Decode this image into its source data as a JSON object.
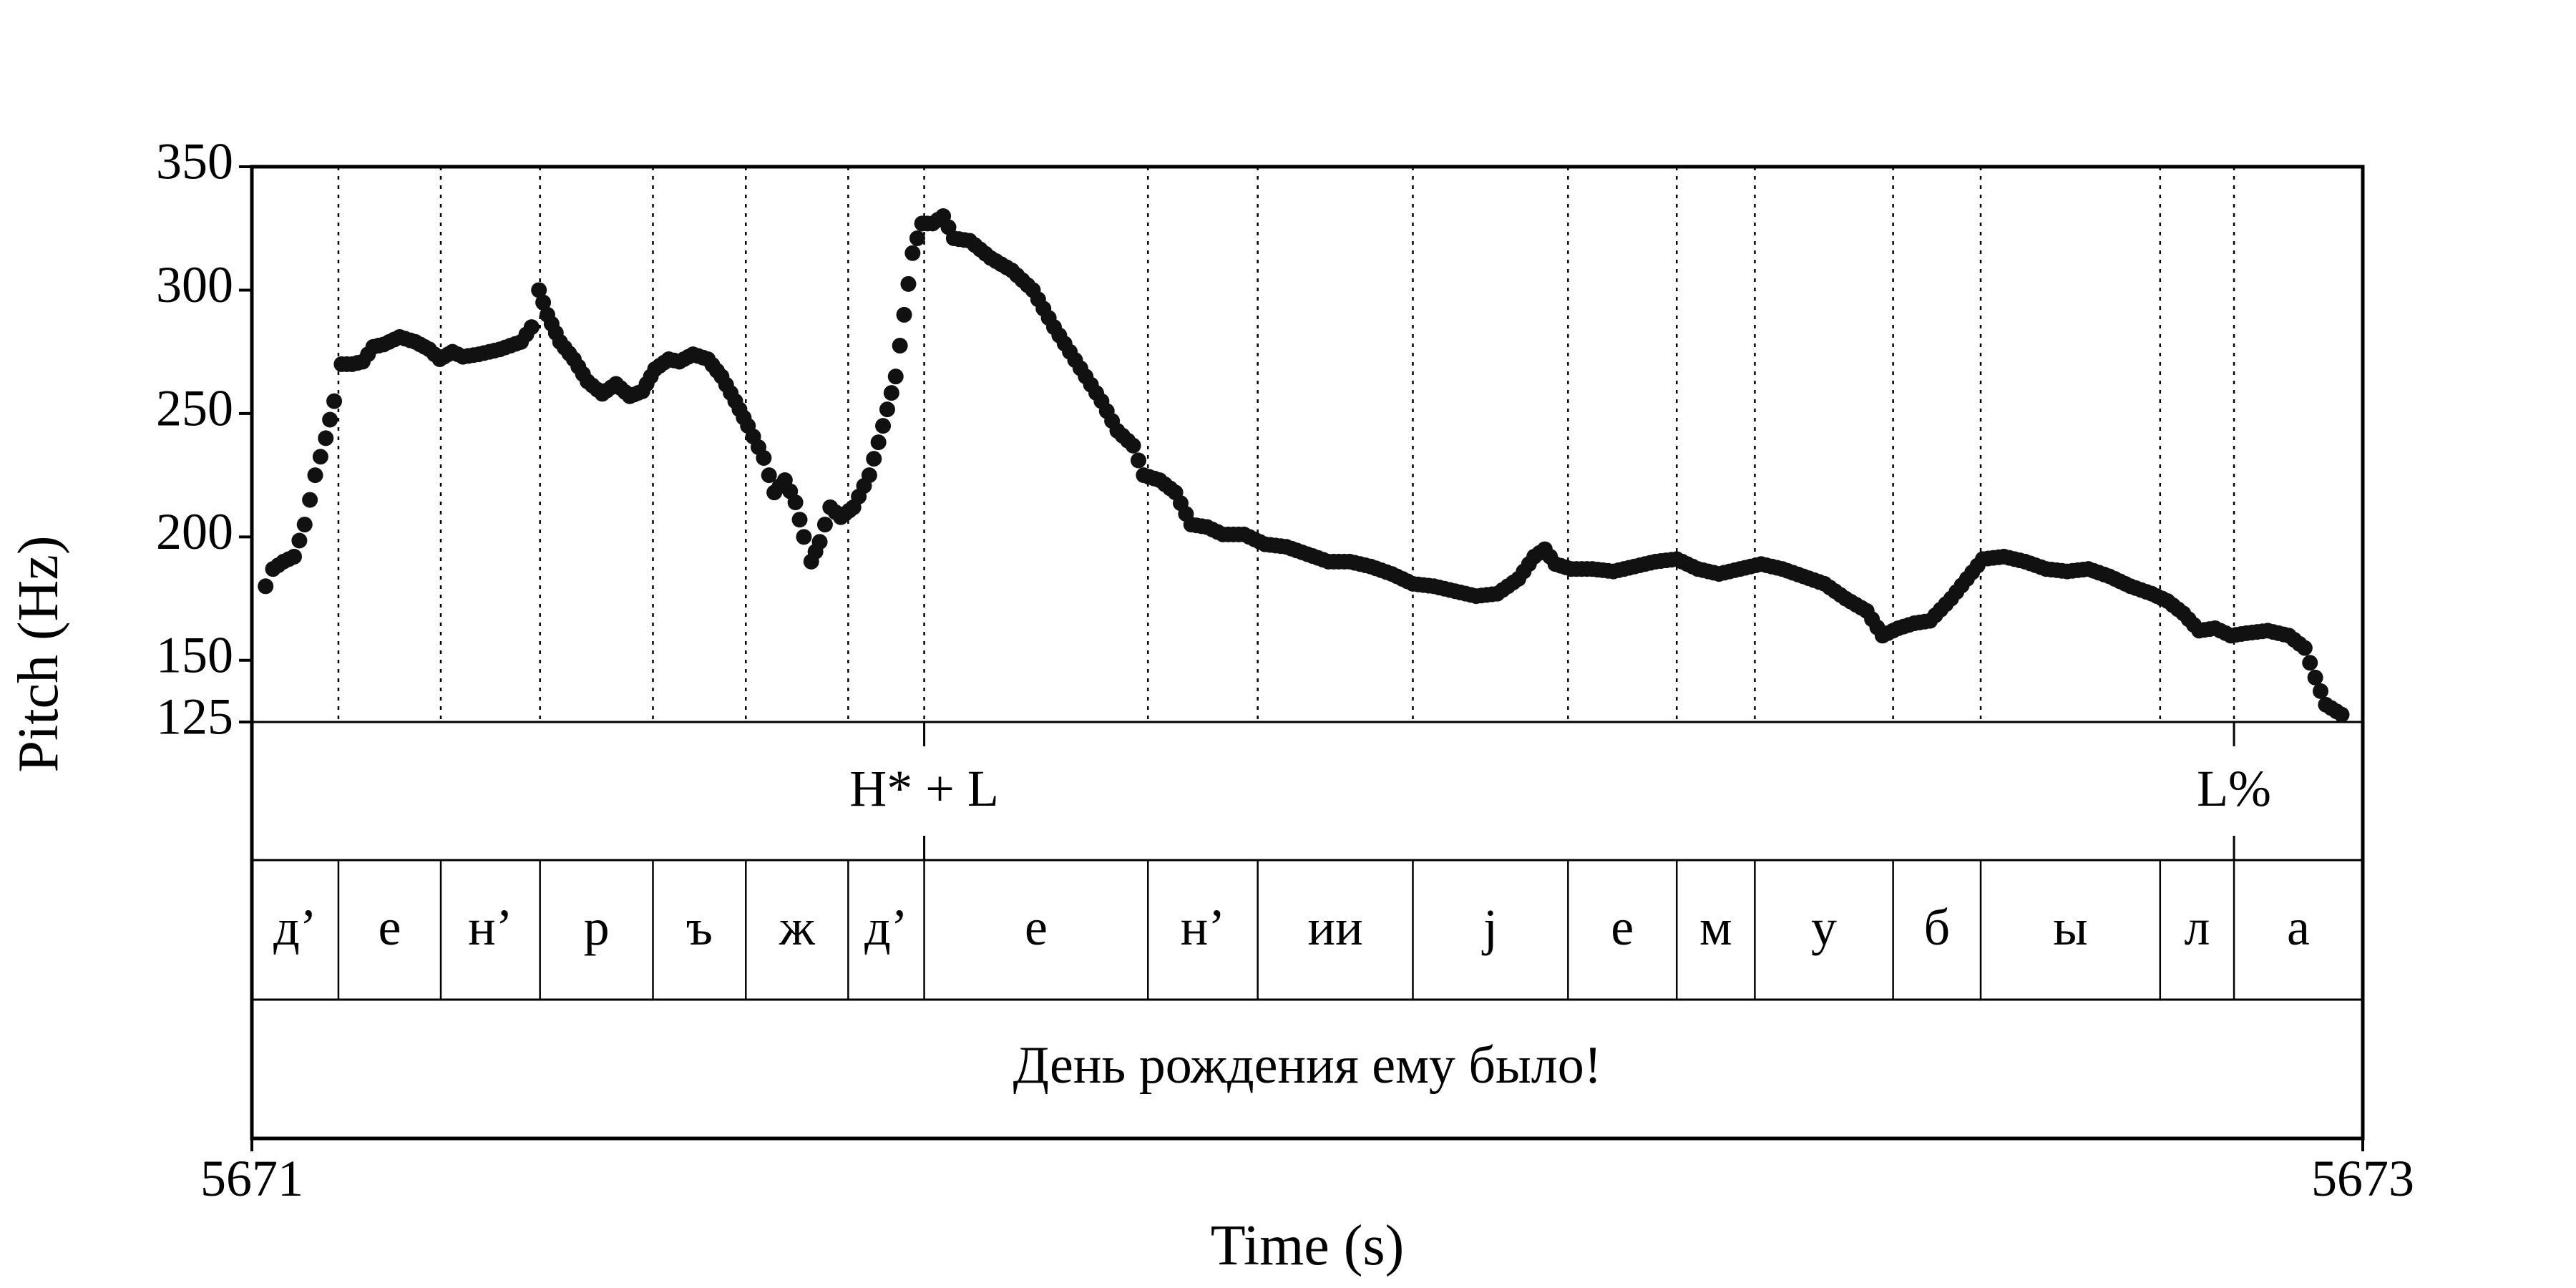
{
  "chart_data": {
    "type": "scatter",
    "marker_color": "#111111",
    "ylabel": "Pitch (Hz)",
    "xlabel": "Time (s)",
    "xlim": [
      5671,
      5673
    ],
    "ylim": [
      125,
      350
    ],
    "x_tick_labels": [
      "5671",
      "5673"
    ],
    "y_ticks": [
      125,
      150,
      200,
      250,
      300,
      350
    ],
    "y_tick_labels": [
      "125",
      "150",
      "200",
      "250",
      "300",
      "350"
    ],
    "grid": "dotted vertical lines at segment boundaries",
    "tones": [
      {
        "label": "H* + L",
        "time": 5671.637
      },
      {
        "label": "L%",
        "time": 5672.878
      }
    ],
    "segments": [
      {
        "label": "д’",
        "start": 5671.0,
        "end": 5671.082
      },
      {
        "label": "е",
        "start": 5671.082,
        "end": 5671.179
      },
      {
        "label": "н’",
        "start": 5671.179,
        "end": 5671.273
      },
      {
        "label": "р",
        "start": 5671.273,
        "end": 5671.38
      },
      {
        "label": "ъ",
        "start": 5671.38,
        "end": 5671.468
      },
      {
        "label": "ж",
        "start": 5671.468,
        "end": 5671.565
      },
      {
        "label": "д’",
        "start": 5671.565,
        "end": 5671.637
      },
      {
        "label": "е",
        "start": 5671.637,
        "end": 5671.849
      },
      {
        "label": "н’",
        "start": 5671.849,
        "end": 5671.953
      },
      {
        "label": "ии",
        "start": 5671.953,
        "end": 5672.1
      },
      {
        "label": "j",
        "start": 5672.1,
        "end": 5672.247
      },
      {
        "label": "е",
        "start": 5672.247,
        "end": 5672.35
      },
      {
        "label": "м",
        "start": 5672.35,
        "end": 5672.424
      },
      {
        "label": "у",
        "start": 5672.424,
        "end": 5672.555
      },
      {
        "label": "б",
        "start": 5672.555,
        "end": 5672.638
      },
      {
        "label": "ы",
        "start": 5672.638,
        "end": 5672.808
      },
      {
        "label": "л",
        "start": 5672.808,
        "end": 5672.878
      },
      {
        "label": "а",
        "start": 5672.878,
        "end": 5673.0
      }
    ],
    "sentence": "День рождения ему было!",
    "pitch_contour": [
      [
        5671.013,
        180
      ],
      [
        5671.02,
        187
      ],
      [
        5671.03,
        190
      ],
      [
        5671.04,
        192
      ],
      [
        5671.05,
        205
      ],
      [
        5671.06,
        225
      ],
      [
        5671.07,
        240
      ],
      [
        5671.078,
        255
      ],
      [
        5671.085,
        270
      ],
      [
        5671.095,
        270
      ],
      [
        5671.105,
        271
      ],
      [
        5671.115,
        277
      ],
      [
        5671.125,
        278
      ],
      [
        5671.14,
        281
      ],
      [
        5671.155,
        279
      ],
      [
        5671.168,
        276
      ],
      [
        5671.178,
        272
      ],
      [
        5671.19,
        275
      ],
      [
        5671.2,
        273
      ],
      [
        5671.215,
        274
      ],
      [
        5671.235,
        276
      ],
      [
        5671.255,
        279
      ],
      [
        5671.265,
        285
      ],
      [
        5671.272,
        300
      ],
      [
        5671.28,
        290
      ],
      [
        5671.292,
        279
      ],
      [
        5671.305,
        272
      ],
      [
        5671.318,
        263
      ],
      [
        5671.332,
        258
      ],
      [
        5671.345,
        262
      ],
      [
        5671.358,
        257
      ],
      [
        5671.37,
        259
      ],
      [
        5671.382,
        268
      ],
      [
        5671.395,
        272
      ],
      [
        5671.405,
        271
      ],
      [
        5671.418,
        274
      ],
      [
        5671.432,
        272
      ],
      [
        5671.445,
        265
      ],
      [
        5671.458,
        255
      ],
      [
        5671.47,
        245
      ],
      [
        5671.485,
        232
      ],
      [
        5671.495,
        218
      ],
      [
        5671.505,
        223
      ],
      [
        5671.515,
        214
      ],
      [
        5671.523,
        200
      ],
      [
        5671.53,
        190
      ],
      [
        5671.538,
        198
      ],
      [
        5671.548,
        212
      ],
      [
        5671.558,
        208
      ],
      [
        5671.57,
        212
      ],
      [
        5671.585,
        225
      ],
      [
        5671.598,
        245
      ],
      [
        5671.61,
        265
      ],
      [
        5671.618,
        290
      ],
      [
        5671.626,
        315
      ],
      [
        5671.635,
        327
      ],
      [
        5671.645,
        327
      ],
      [
        5671.655,
        330
      ],
      [
        5671.665,
        321
      ],
      [
        5671.68,
        320
      ],
      [
        5671.7,
        313
      ],
      [
        5671.72,
        308
      ],
      [
        5671.74,
        300
      ],
      [
        5671.76,
        285
      ],
      [
        5671.775,
        275
      ],
      [
        5671.79,
        265
      ],
      [
        5671.805,
        255
      ],
      [
        5671.82,
        243
      ],
      [
        5671.835,
        237
      ],
      [
        5671.845,
        225
      ],
      [
        5671.86,
        223
      ],
      [
        5671.875,
        218
      ],
      [
        5671.89,
        205
      ],
      [
        5671.905,
        204
      ],
      [
        5671.92,
        201
      ],
      [
        5671.94,
        201
      ],
      [
        5671.96,
        197
      ],
      [
        5671.98,
        196
      ],
      [
        5672.0,
        193
      ],
      [
        5672.02,
        190
      ],
      [
        5672.04,
        190
      ],
      [
        5672.06,
        188
      ],
      [
        5672.08,
        185
      ],
      [
        5672.1,
        181
      ],
      [
        5672.12,
        180
      ],
      [
        5672.14,
        178
      ],
      [
        5672.16,
        176
      ],
      [
        5672.18,
        177
      ],
      [
        5672.2,
        183
      ],
      [
        5672.215,
        192
      ],
      [
        5672.225,
        195
      ],
      [
        5672.235,
        189
      ],
      [
        5672.25,
        187
      ],
      [
        5672.27,
        187
      ],
      [
        5672.29,
        186
      ],
      [
        5672.31,
        188
      ],
      [
        5672.33,
        190
      ],
      [
        5672.35,
        191
      ],
      [
        5672.37,
        187
      ],
      [
        5672.39,
        185
      ],
      [
        5672.41,
        187
      ],
      [
        5672.43,
        189
      ],
      [
        5672.45,
        187
      ],
      [
        5672.47,
        184
      ],
      [
        5672.49,
        181
      ],
      [
        5672.51,
        175
      ],
      [
        5672.53,
        170
      ],
      [
        5672.545,
        160
      ],
      [
        5672.56,
        163
      ],
      [
        5672.575,
        165
      ],
      [
        5672.59,
        166
      ],
      [
        5672.61,
        175
      ],
      [
        5672.625,
        183
      ],
      [
        5672.64,
        191
      ],
      [
        5672.66,
        192
      ],
      [
        5672.68,
        190
      ],
      [
        5672.7,
        187
      ],
      [
        5672.72,
        186
      ],
      [
        5672.74,
        187
      ],
      [
        5672.76,
        184
      ],
      [
        5672.78,
        180
      ],
      [
        5672.8,
        177
      ],
      [
        5672.815,
        174
      ],
      [
        5672.83,
        169
      ],
      [
        5672.845,
        162
      ],
      [
        5672.86,
        163
      ],
      [
        5672.875,
        160
      ],
      [
        5672.89,
        161
      ],
      [
        5672.91,
        162
      ],
      [
        5672.93,
        160
      ],
      [
        5672.945,
        155
      ],
      [
        5672.955,
        143
      ],
      [
        5672.965,
        132
      ],
      [
        5672.98,
        128
      ]
    ]
  }
}
